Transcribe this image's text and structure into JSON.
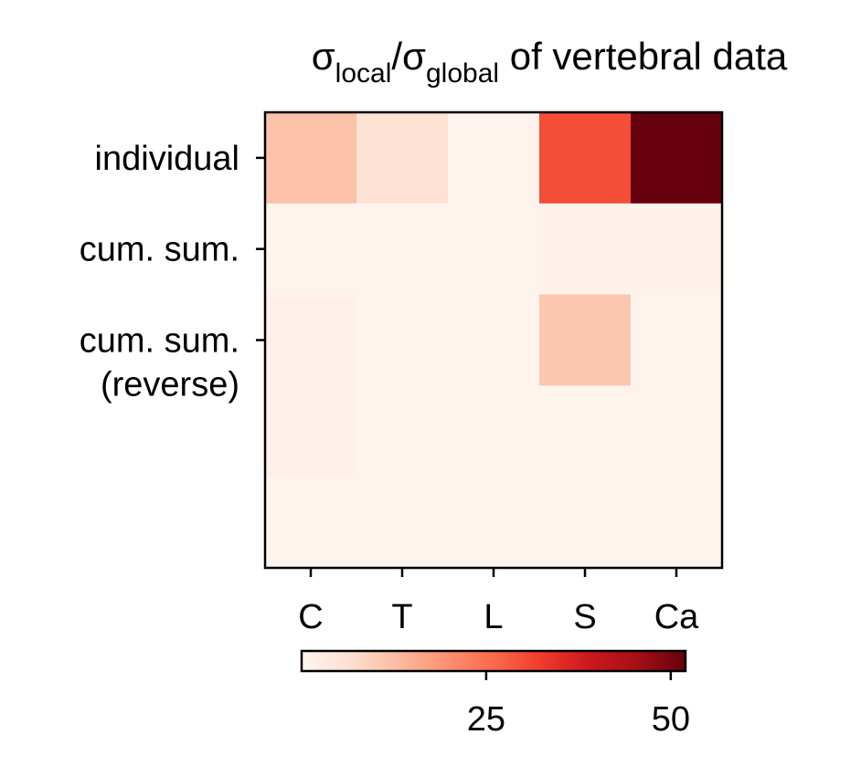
{
  "chart_data": {
    "type": "heatmap",
    "title": {
      "sigma": "σ",
      "sub_local": "local",
      "slash": "/",
      "sub_global": "global",
      "rest": " of vertebral data"
    },
    "x_categories": [
      "C",
      "T",
      "L",
      "S",
      "Ca"
    ],
    "y_tick_labels": [
      {
        "lines": [
          "individual"
        ]
      },
      {
        "lines": [
          "cum. sum."
        ]
      },
      {
        "lines": [
          "cum. sum.",
          "(reverse)"
        ]
      }
    ],
    "n_rows": 5,
    "values": [
      [
        12,
        6,
        0.5,
        30,
        52
      ],
      [
        0.5,
        0.5,
        0.5,
        1,
        1
      ],
      [
        1.5,
        0.5,
        0.5,
        11,
        0.5
      ],
      [
        1.5,
        0.5,
        0.5,
        0.5,
        0.5
      ],
      [
        0.5,
        0.5,
        0.5,
        0.5,
        0.5
      ]
    ],
    "colormap": "Reds",
    "colorbar": {
      "orientation": "horizontal",
      "placement": "bottom",
      "vmin": 0,
      "vmax": 52,
      "ticks": [
        25,
        50
      ],
      "tick_labels": [
        "25",
        "50"
      ]
    }
  }
}
